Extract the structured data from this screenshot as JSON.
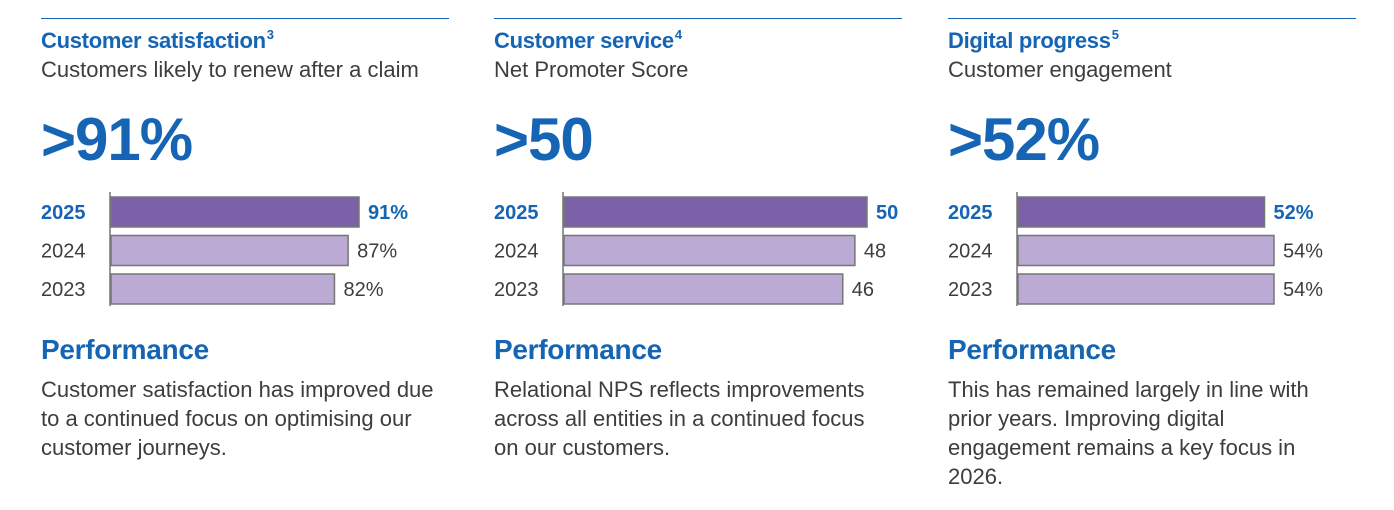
{
  "colors": {
    "accent": "#1565b4",
    "text": "#3d3d3d",
    "bar_current": "#7b62a8",
    "bar_prior": "#bbaad3",
    "bar_border": "#767676",
    "axis": "#767676"
  },
  "chart_data": [
    {
      "type": "bar",
      "orientation": "horizontal",
      "title": "Customer satisfaction",
      "title_note": "3",
      "subtitle": "Customers likely to renew after a claim",
      "headline": ">91%",
      "categories": [
        "2025",
        "2024",
        "2023"
      ],
      "values": [
        91,
        87,
        82
      ],
      "value_labels": [
        "91%",
        "87%",
        "82%"
      ],
      "highlight": "2025",
      "performance_heading": "Performance",
      "performance_text": "Customer satisfaction has improved due to a continued focus on optimising our customer journeys."
    },
    {
      "type": "bar",
      "orientation": "horizontal",
      "title": "Customer service",
      "title_note": "4",
      "subtitle": "Net Promoter Score",
      "headline": ">50",
      "categories": [
        "2025",
        "2024",
        "2023"
      ],
      "values": [
        50,
        48,
        46
      ],
      "value_labels": [
        "50",
        "48",
        "46"
      ],
      "highlight": "2025",
      "performance_heading": "Performance",
      "performance_text": "Relational NPS reflects improvements across all entities in a continued focus on our customers."
    },
    {
      "type": "bar",
      "orientation": "horizontal",
      "title": "Digital progress",
      "title_note": "5",
      "subtitle": "Customer engagement",
      "headline": ">52%",
      "categories": [
        "2025",
        "2024",
        "2023"
      ],
      "values": [
        52,
        54,
        54
      ],
      "value_labels": [
        "52%",
        "54%",
        "54%"
      ],
      "highlight": "2025",
      "performance_heading": "Performance",
      "performance_text": "This has remained largely in line with prior years. Improving digital engagement remains a key focus in 2026."
    }
  ]
}
